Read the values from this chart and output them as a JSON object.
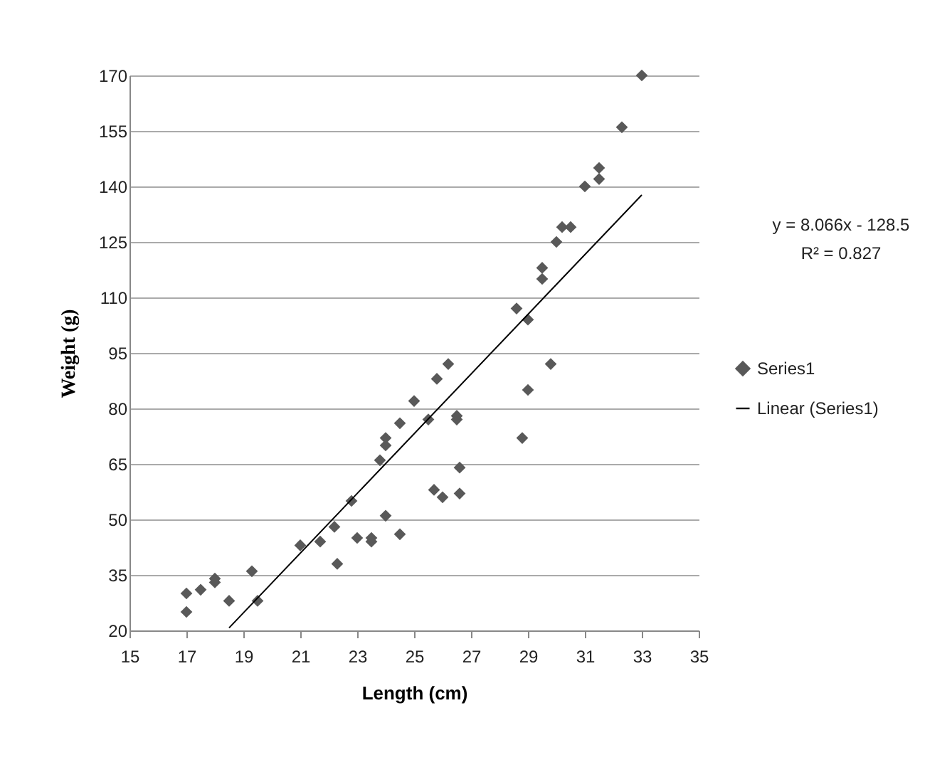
{
  "chart_data": {
    "type": "scatter",
    "xlabel": "Length (cm)",
    "ylabel": "Weight (g)",
    "xlim": [
      15,
      35
    ],
    "xticks": [
      15,
      17,
      19,
      21,
      23,
      25,
      27,
      29,
      31,
      33,
      35
    ],
    "ylim": [
      20,
      170
    ],
    "yticks": [
      20,
      35,
      50,
      65,
      80,
      95,
      110,
      125,
      140,
      155,
      170
    ],
    "grid": "y",
    "legend": "right",
    "annotations": [
      "y = 8.066x - 128.5",
      "R² = 0.827"
    ],
    "series": [
      {
        "name": "Series1",
        "marker": "diamond",
        "color": "#595959",
        "x": [
          17,
          17,
          17.5,
          18,
          18,
          18.5,
          19.3,
          19.5,
          21,
          21.7,
          22.2,
          22.3,
          22.8,
          23,
          23.5,
          23.5,
          23.8,
          24,
          24,
          24,
          24.5,
          24.5,
          25,
          25.5,
          25.7,
          25.8,
          26,
          26.2,
          26.5,
          26.5,
          26.6,
          26.6,
          28.6,
          28.8,
          29,
          29,
          29.5,
          29.5,
          29.8,
          30,
          30.2,
          30.5,
          31,
          31.5,
          31.5,
          32.3,
          33
        ],
        "values": [
          25,
          30,
          31,
          33,
          34,
          28,
          36,
          28,
          43,
          44,
          48,
          38,
          55,
          45,
          44,
          45,
          66,
          70,
          72,
          51,
          76,
          46,
          82,
          77,
          58,
          88,
          56,
          92,
          77,
          78,
          64,
          57,
          107,
          72,
          104,
          85,
          115,
          118,
          92,
          125,
          129,
          129,
          140,
          142,
          145,
          156,
          170
        ]
      },
      {
        "name": "Linear (Series1)",
        "type": "line",
        "color": "#000000",
        "marker": "none",
        "x": [
          18.5,
          33
        ],
        "values": [
          20.7,
          137.7
        ]
      }
    ]
  }
}
